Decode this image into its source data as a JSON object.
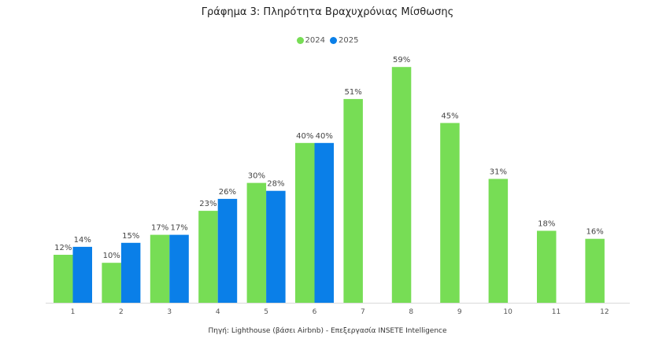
{
  "chart_data": {
    "type": "bar",
    "title": "Γράφημα 3: Πληρότητα Βραχυχρόνιας Μίσθωσης",
    "categories": [
      "1",
      "2",
      "3",
      "4",
      "5",
      "6",
      "7",
      "8",
      "9",
      "10",
      "11",
      "12"
    ],
    "series": [
      {
        "name": "2024",
        "color": "#77dd55",
        "values": [
          12,
          10,
          17,
          23,
          30,
          40,
          51,
          59,
          45,
          31,
          18,
          16
        ]
      },
      {
        "name": "2025",
        "color": "#0a7fe8",
        "values": [
          14,
          15,
          17,
          26,
          28,
          40,
          null,
          null,
          null,
          null,
          null,
          null
        ]
      }
    ],
    "value_suffix": "%",
    "ylim": [
      0,
      62
    ],
    "grid": false,
    "legend_position": "top-center",
    "source": "Πηγή: Lighthouse (βάσει Airbnb) - Επεξεργασία INSETE Intelligence"
  }
}
